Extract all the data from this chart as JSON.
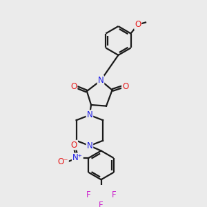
{
  "background_color": "#ebebeb",
  "bond_color": "#1a1a1a",
  "N_color": "#1a1ae6",
  "O_color": "#e61a1a",
  "F_color": "#cc22cc",
  "line_width": 1.6,
  "font_size_atom": 8.5,
  "figsize": [
    3.0,
    3.0
  ],
  "dpi": 100,
  "xlim": [
    0,
    10
  ],
  "ylim": [
    0,
    10
  ]
}
